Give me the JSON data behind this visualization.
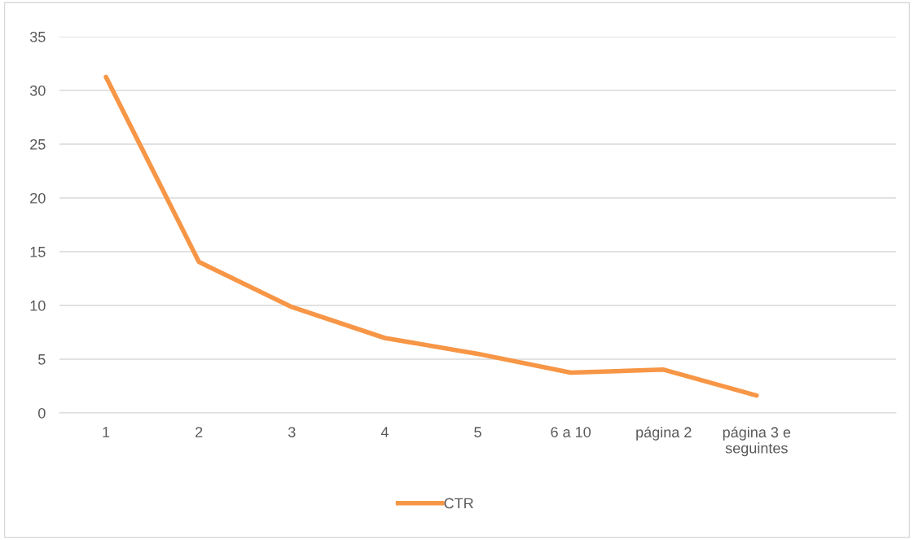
{
  "chart_data": {
    "type": "line",
    "categories": [
      "1",
      "2",
      "3",
      "4",
      "5",
      "6 a 10",
      "página 2",
      "página 3 e\nseguintes",
      null
    ],
    "series": [
      {
        "name": "CTR",
        "color": "#f79646",
        "values": [
          31.25,
          14.05,
          9.85,
          6.97,
          5.5,
          3.75,
          4.03,
          1.62,
          null
        ]
      }
    ],
    "ylim": [
      0,
      35
    ],
    "yticks": [
      0,
      5,
      10,
      15,
      20,
      25,
      30,
      35
    ],
    "grid": "y",
    "legend": "bottom",
    "marker": "none",
    "line_style": "solid"
  }
}
